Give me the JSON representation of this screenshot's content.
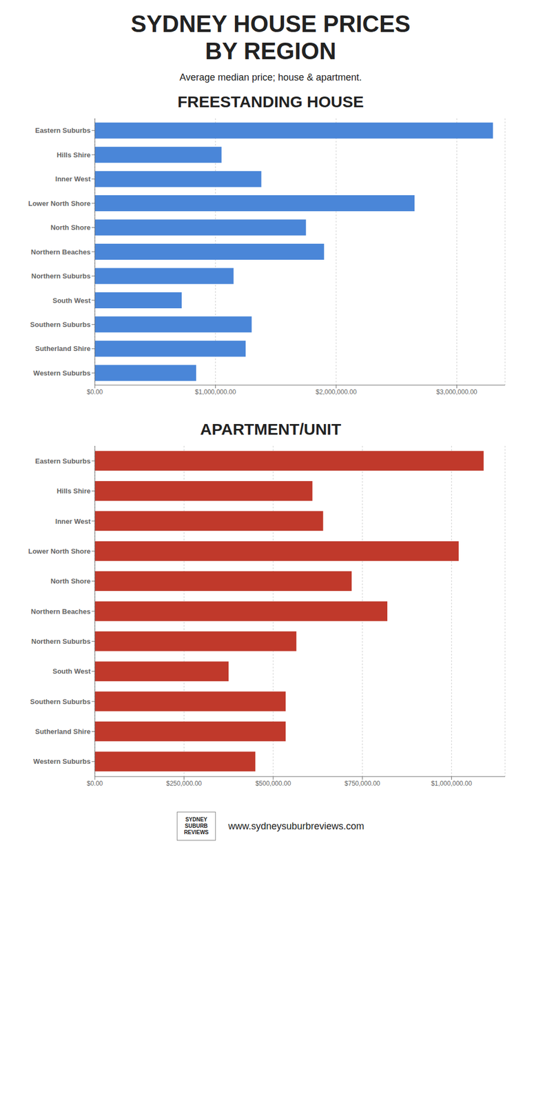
{
  "title": "SYDNEY HOUSE PRICES\nBY REGION",
  "subtitle": "Average median price; house & apartment.",
  "annotations": [
    "SYDNEY\nSUBURB\nREVIEWS",
    "www.sydneysuburbreviews.com"
  ],
  "chart_data": [
    {
      "type": "bar",
      "orientation": "horizontal",
      "title": "FREESTANDING HOUSE",
      "color": "#4a86d8",
      "grid": true,
      "categories": [
        "Eastern Suburbs",
        "Hills Shire",
        "Inner West",
        "Lower North Shore",
        "North Shore",
        "Northern Beaches",
        "Northern Suburbs",
        "South West",
        "Southern Suburbs",
        "Sutherland Shire",
        "Western Suburbs"
      ],
      "values": [
        3300000,
        1050000,
        1380000,
        2650000,
        1750000,
        1900000,
        1150000,
        720000,
        1300000,
        1250000,
        840000
      ],
      "xlim": [
        0,
        3400000
      ],
      "xticks": [
        {
          "value": 0,
          "label": "$0.00"
        },
        {
          "value": 1000000,
          "label": "$1,000,000.00"
        },
        {
          "value": 2000000,
          "label": "$2,000,000.00"
        },
        {
          "value": 3000000,
          "label": "$3,000,000.00"
        }
      ]
    },
    {
      "type": "bar",
      "orientation": "horizontal",
      "title": "APARTMENT/UNIT",
      "color": "#c0392b",
      "grid": true,
      "categories": [
        "Eastern Suburbs",
        "Hills Shire",
        "Inner West",
        "Lower North Shore",
        "North Shore",
        "Northern Beaches",
        "Northern Suburbs",
        "South West",
        "Southern Suburbs",
        "Sutherland Shire",
        "Western Suburbs"
      ],
      "values": [
        1090000,
        610000,
        640000,
        1020000,
        720000,
        820000,
        565000,
        375000,
        535000,
        535000,
        450000
      ],
      "xlim": [
        0,
        1150000
      ],
      "xticks": [
        {
          "value": 0,
          "label": "$0.00"
        },
        {
          "value": 250000,
          "label": "$250,000.00"
        },
        {
          "value": 500000,
          "label": "$500,000.00"
        },
        {
          "value": 750000,
          "label": "$750,000.00"
        },
        {
          "value": 1000000,
          "label": "$1,000,000.00"
        }
      ]
    }
  ]
}
